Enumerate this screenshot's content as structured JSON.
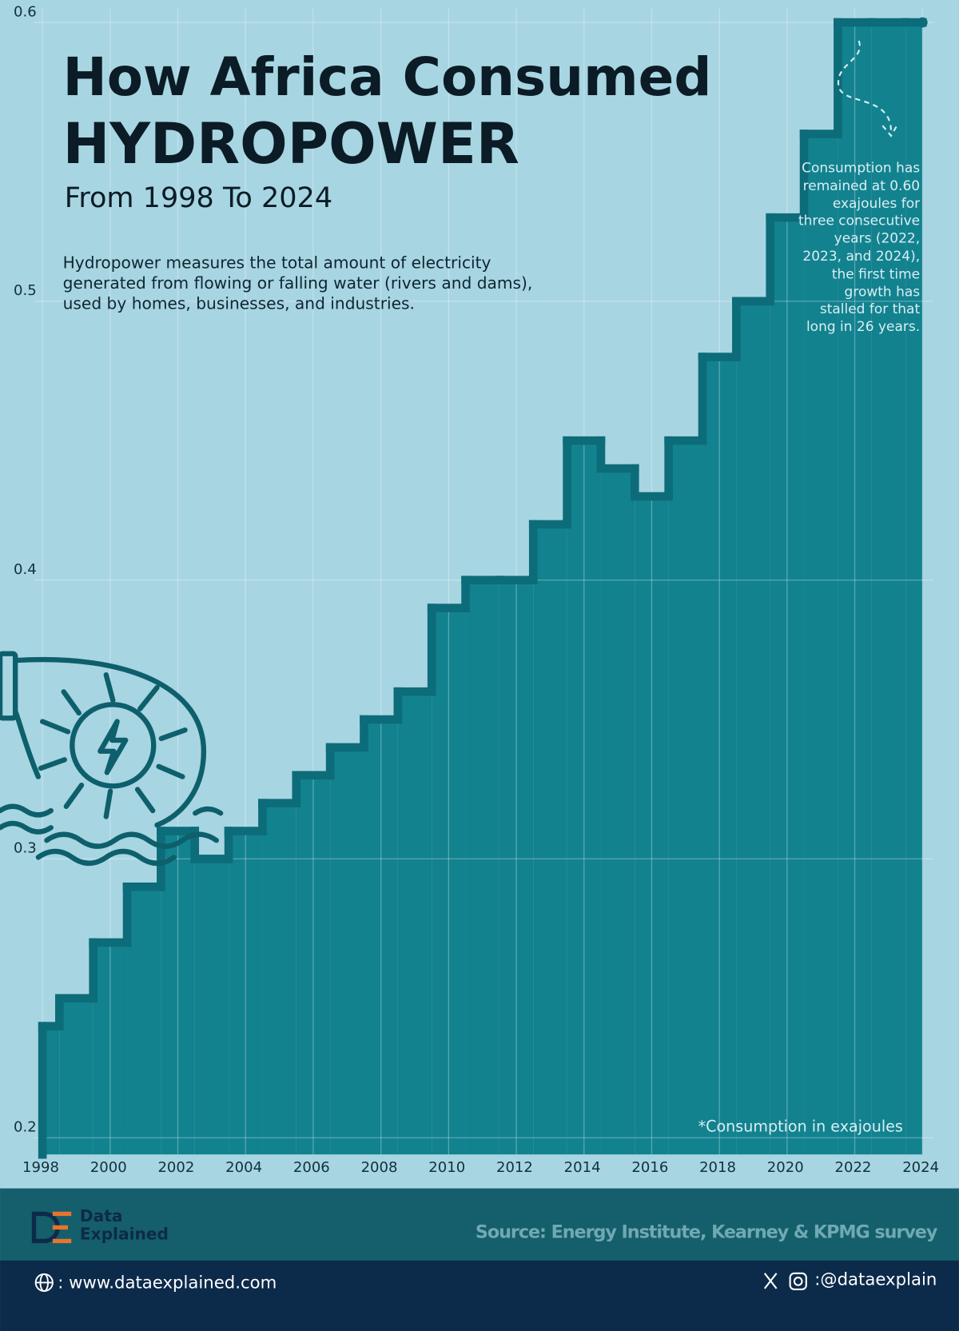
{
  "chart_data": {
    "type": "step",
    "title": "How Africa Consumed",
    "title_emphasis": "HYDROPOWER",
    "subtitle": "From 1998 To 2024",
    "description": "Hydropower measures the total amount of electricity generated from flowing or falling water (rivers and dams), used by homes, businesses, and industries.",
    "annotation": "Consumption has remained at 0.60 exajoules for three consecutive years (2022, 2023, and 2024), the first time growth has stalled for that long in 26 years.",
    "note": "*Consumption in exajoules",
    "x": [
      1998,
      1999,
      2000,
      2001,
      2002,
      2003,
      2004,
      2005,
      2006,
      2007,
      2008,
      2009,
      2010,
      2011,
      2012,
      2013,
      2014,
      2015,
      2016,
      2017,
      2018,
      2019,
      2020,
      2021,
      2022,
      2023,
      2024
    ],
    "values": [
      0.24,
      0.25,
      0.27,
      0.29,
      0.31,
      0.3,
      0.31,
      0.32,
      0.33,
      0.34,
      0.35,
      0.36,
      0.39,
      0.4,
      0.4,
      0.42,
      0.45,
      0.44,
      0.43,
      0.45,
      0.48,
      0.5,
      0.53,
      0.56,
      0.6,
      0.6,
      0.6
    ],
    "color": "#13828f",
    "line_color": "#0d6c79",
    "xlim": [
      1998,
      2024
    ],
    "xticks": [
      1998,
      2000,
      2002,
      2004,
      2006,
      2008,
      2010,
      2012,
      2014,
      2016,
      2018,
      2020,
      2022,
      2024
    ],
    "ylim": [
      0.194,
      0.605
    ],
    "yticks": [
      0.2,
      0.3,
      0.4,
      0.5,
      0.6
    ],
    "grid": true
  },
  "footer": {
    "brand_lines": [
      "Data",
      "Explained"
    ],
    "source": "Source: Energy Institute, Kearney & KPMG survey",
    "website": ": www.dataexplained.com",
    "handle": ":@dataexplain"
  }
}
